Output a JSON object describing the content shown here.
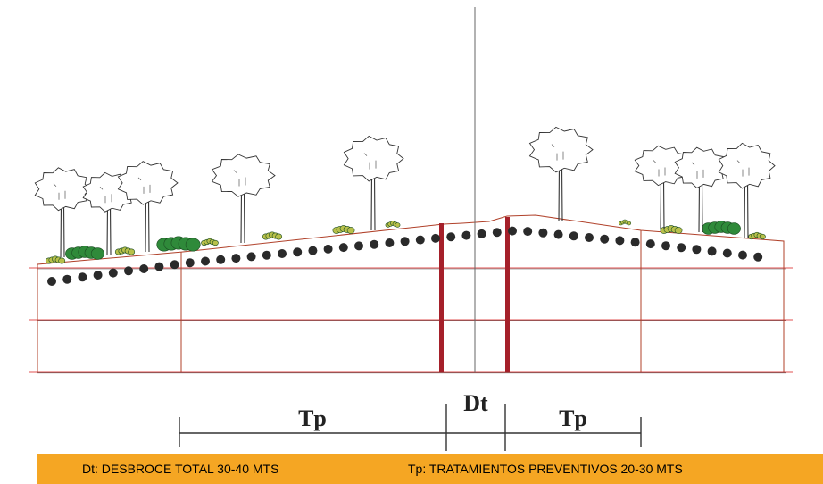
{
  "labels": {
    "tp_left": "Tp",
    "dt": "Dt",
    "tp_right": "Tp"
  },
  "legend": {
    "dt_text": "Dt: DESBROCE TOTAL 30-40 MTS",
    "tp_text": "Tp: TRATAMIENTOS PREVENTIVOS 20-30 MTS"
  },
  "colors": {
    "legend_bar": "#F5A623",
    "terrain_line": "#b0412a",
    "red_line": "#e05050",
    "firebreak_post": "#a5202a",
    "dots": "#2a2a2a",
    "shrub_green": "#2f8a3a",
    "shrub_yellow": "#b8c04a"
  }
}
